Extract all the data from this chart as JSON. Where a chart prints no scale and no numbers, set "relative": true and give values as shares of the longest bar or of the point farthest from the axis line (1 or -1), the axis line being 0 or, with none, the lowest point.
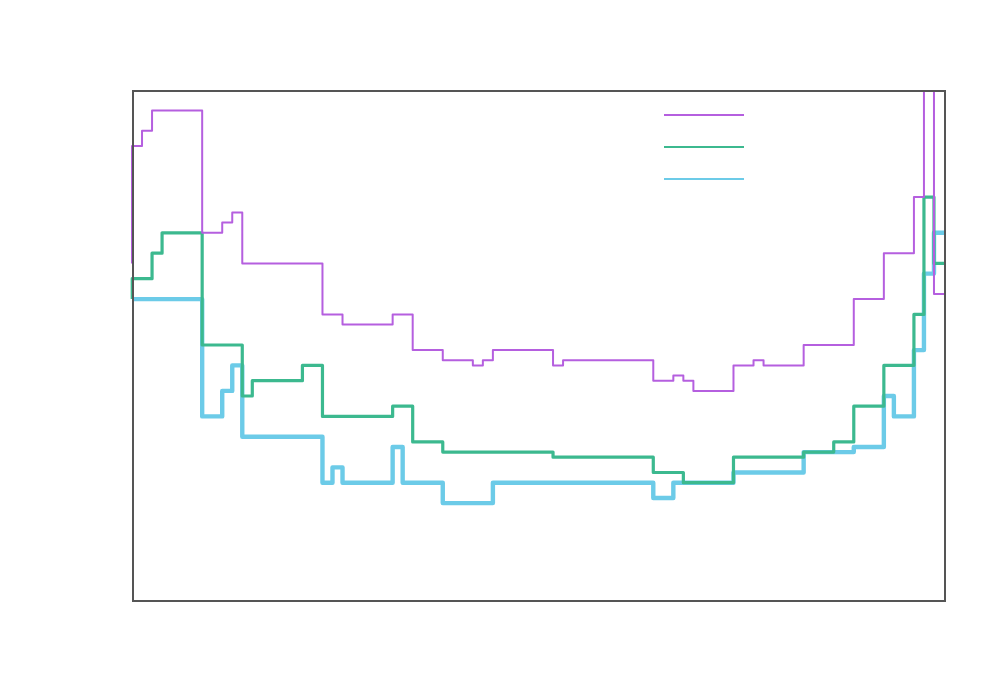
{
  "chart_data": {
    "type": "step",
    "relative": true,
    "categories": [
      null,
      null,
      null,
      null,
      null,
      null,
      null,
      null,
      null,
      null,
      null,
      null,
      null,
      null,
      null,
      null,
      null,
      null,
      null,
      null,
      null,
      null,
      null,
      null,
      null,
      null,
      null,
      null,
      null,
      null,
      null,
      null,
      null,
      null,
      null,
      null,
      null,
      null,
      null,
      null,
      null,
      null,
      null,
      null,
      null,
      null,
      null,
      null,
      null,
      null,
      null,
      null,
      null,
      null,
      null,
      null,
      null,
      null,
      null,
      null,
      null,
      null,
      null,
      null,
      null,
      null,
      null,
      null,
      null,
      null,
      null,
      null,
      null,
      null,
      null,
      null,
      null,
      null,
      null,
      null,
      null,
      null
    ],
    "series": [
      {
        "color": "#b55fdf",
        "values": [
          0.66,
          0.89,
          0.92,
          0.96,
          0.96,
          0.96,
          0.96,
          0.96,
          0.72,
          0.72,
          0.74,
          0.76,
          0.66,
          0.66,
          0.66,
          0.66,
          0.66,
          0.66,
          0.66,
          0.66,
          0.56,
          0.56,
          0.54,
          0.54,
          0.54,
          0.54,
          0.54,
          0.56,
          0.56,
          0.49,
          0.49,
          0.49,
          0.47,
          0.47,
          0.47,
          0.46,
          0.47,
          0.49,
          0.49,
          0.49,
          0.49,
          0.49,
          0.49,
          0.46,
          0.47,
          0.47,
          0.47,
          0.47,
          0.47,
          0.47,
          0.47,
          0.47,
          0.47,
          0.43,
          0.43,
          0.44,
          0.43,
          0.41,
          0.41,
          0.41,
          0.41,
          0.46,
          0.46,
          0.47,
          0.46,
          0.46,
          0.46,
          0.46,
          0.5,
          0.5,
          0.5,
          0.5,
          0.5,
          0.59,
          0.59,
          0.59,
          0.68,
          0.68,
          0.68,
          0.79,
          1,
          0.6
        ]
      },
      {
        "color": "#3cb98f",
        "values": [
          0.59,
          0.63,
          0.63,
          0.68,
          0.72,
          0.72,
          0.72,
          0.72,
          0.5,
          0.5,
          0.5,
          0.5,
          0.4,
          0.43,
          0.43,
          0.43,
          0.43,
          0.43,
          0.46,
          0.46,
          0.36,
          0.36,
          0.36,
          0.36,
          0.36,
          0.36,
          0.36,
          0.38,
          0.38,
          0.31,
          0.31,
          0.31,
          0.29,
          0.29,
          0.29,
          0.29,
          0.29,
          0.29,
          0.29,
          0.29,
          0.29,
          0.29,
          0.29,
          0.28,
          0.28,
          0.28,
          0.28,
          0.28,
          0.28,
          0.28,
          0.28,
          0.28,
          0.28,
          0.25,
          0.25,
          0.25,
          0.23,
          0.23,
          0.23,
          0.23,
          0.23,
          0.28,
          0.28,
          0.28,
          0.28,
          0.28,
          0.28,
          0.28,
          0.29,
          0.29,
          0.29,
          0.31,
          0.31,
          0.38,
          0.38,
          0.38,
          0.46,
          0.46,
          0.46,
          0.56,
          0.79,
          0.66
        ]
      },
      {
        "color": "#6ccbe8",
        "values": [
          0.59,
          0.59,
          0.59,
          0.59,
          0.59,
          0.59,
          0.59,
          0.59,
          0.36,
          0.36,
          0.41,
          0.46,
          0.32,
          0.32,
          0.32,
          0.32,
          0.32,
          0.32,
          0.32,
          0.32,
          0.23,
          0.26,
          0.23,
          0.23,
          0.23,
          0.23,
          0.23,
          0.3,
          0.23,
          0.23,
          0.23,
          0.23,
          0.19,
          0.19,
          0.19,
          0.19,
          0.19,
          0.23,
          0.23,
          0.23,
          0.23,
          0.23,
          0.23,
          0.23,
          0.23,
          0.23,
          0.23,
          0.23,
          0.23,
          0.23,
          0.23,
          0.23,
          0.23,
          0.2,
          0.2,
          0.23,
          0.23,
          0.23,
          0.23,
          0.23,
          0.23,
          0.25,
          0.25,
          0.25,
          0.25,
          0.25,
          0.25,
          0.25,
          0.29,
          0.29,
          0.29,
          0.29,
          0.29,
          0.3,
          0.3,
          0.3,
          0.4,
          0.36,
          0.36,
          0.49,
          0.64,
          0.72
        ]
      }
    ]
  }
}
